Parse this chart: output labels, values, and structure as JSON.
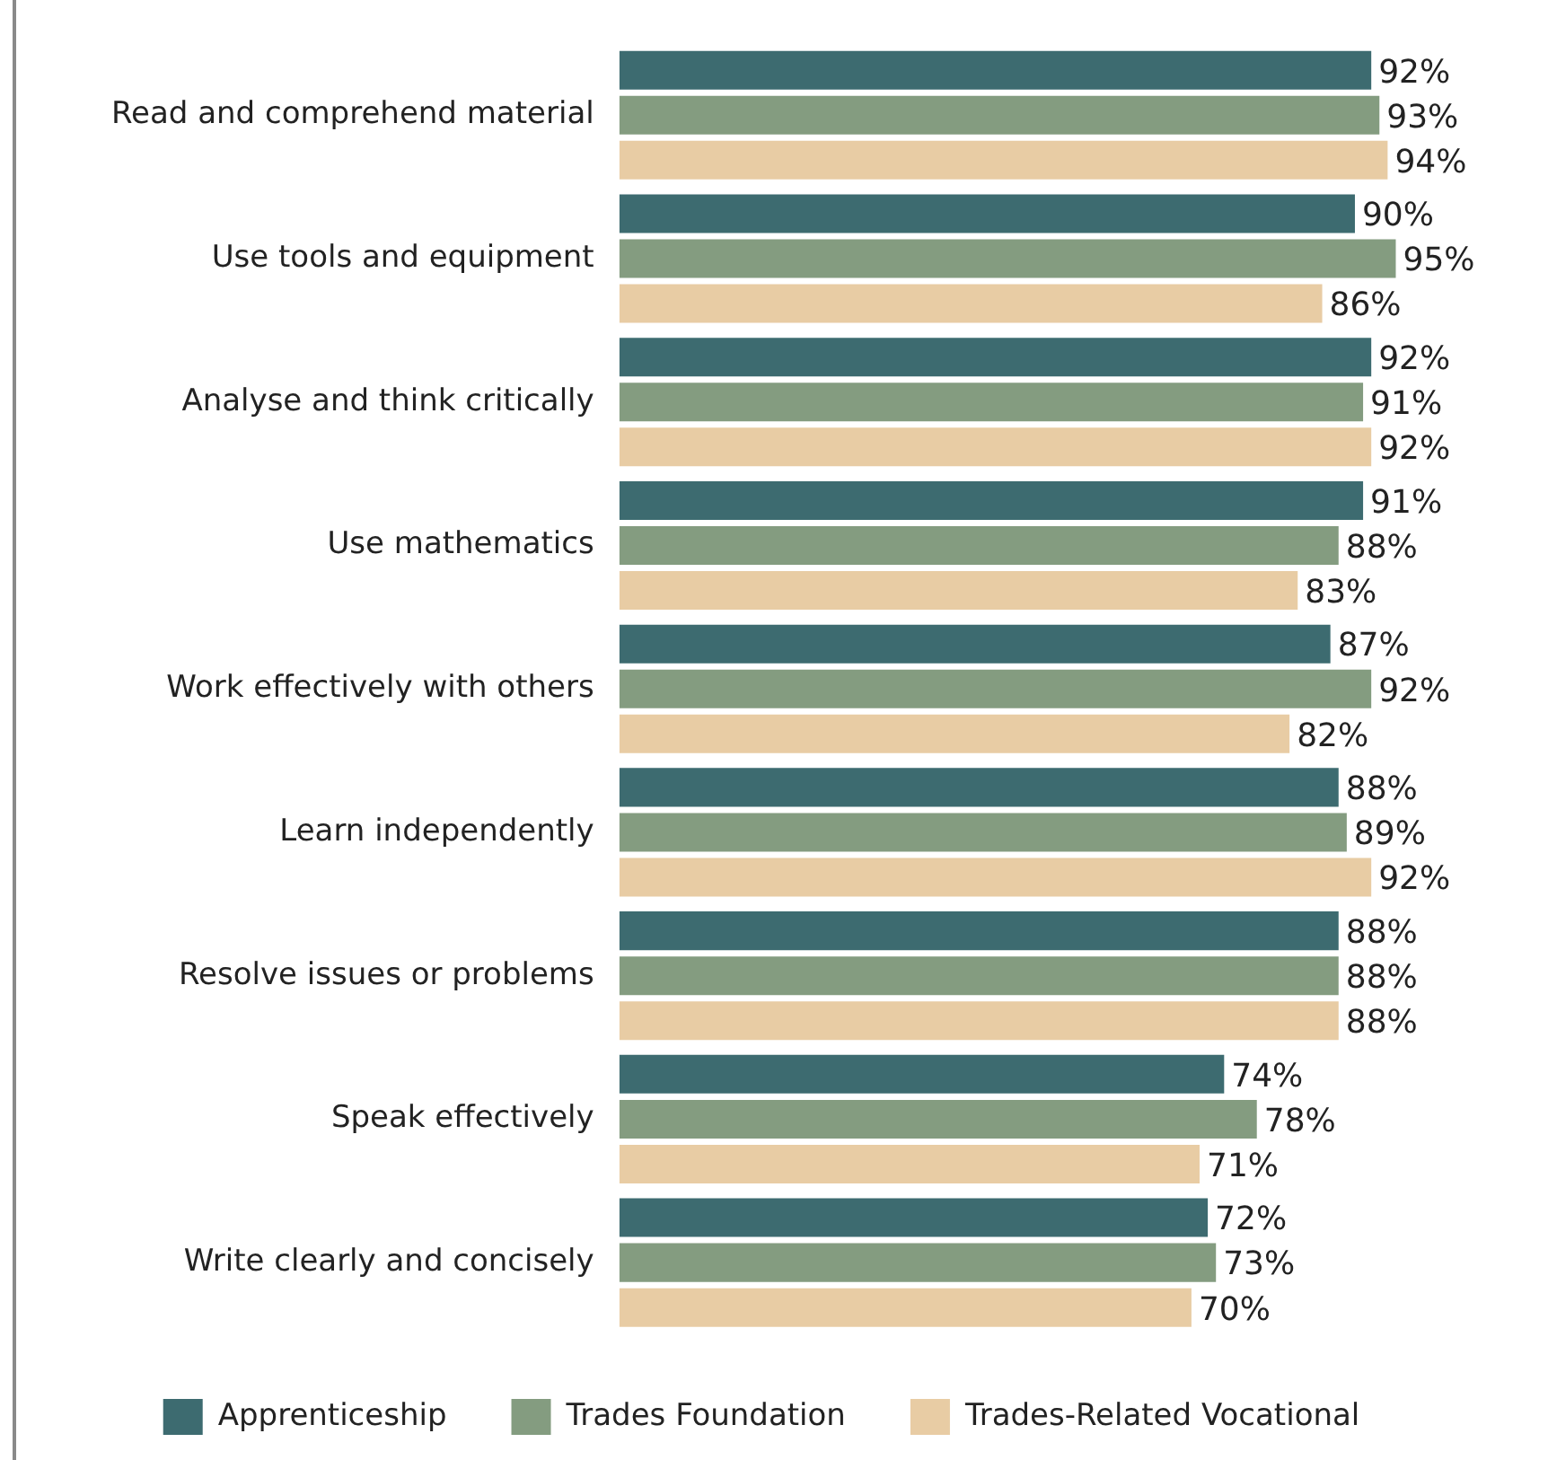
{
  "chart_data": {
    "type": "bar",
    "orientation": "horizontal",
    "categories": [
      "Read and comprehend material",
      "Use tools and equipment",
      "Analyse and think critically",
      "Use mathematics",
      "Work effectively with others",
      "Learn independently",
      "Resolve issues or problems",
      "Speak effectively",
      "Write clearly and concisely"
    ],
    "series": [
      {
        "name": "Apprenticeship",
        "color": "#3d6b70",
        "values": [
          92,
          90,
          92,
          91,
          87,
          88,
          88,
          74,
          72
        ],
        "value_labels": [
          "92%",
          "90%",
          "92%",
          "91%",
          "87%",
          "88%",
          "88%",
          "74%",
          "72%"
        ]
      },
      {
        "name": "Trades Foundation",
        "color": "#849c80",
        "values": [
          93,
          95,
          91,
          88,
          92,
          89,
          88,
          78,
          73
        ],
        "value_labels": [
          "93%",
          "95%",
          "91%",
          "88%",
          "92%",
          "89%",
          "88%",
          "78%",
          "73%"
        ]
      },
      {
        "name": "Trades-Related Vocational",
        "color": "#e8cca4",
        "values": [
          94,
          86,
          92,
          83,
          82,
          92,
          88,
          71,
          70
        ],
        "value_labels": [
          "94%",
          "86%",
          "92%",
          "83%",
          "82%",
          "92%",
          "88%",
          "71%",
          "70%"
        ]
      }
    ],
    "grid": false,
    "legend": "bottom",
    "tick_labels": "y"
  }
}
